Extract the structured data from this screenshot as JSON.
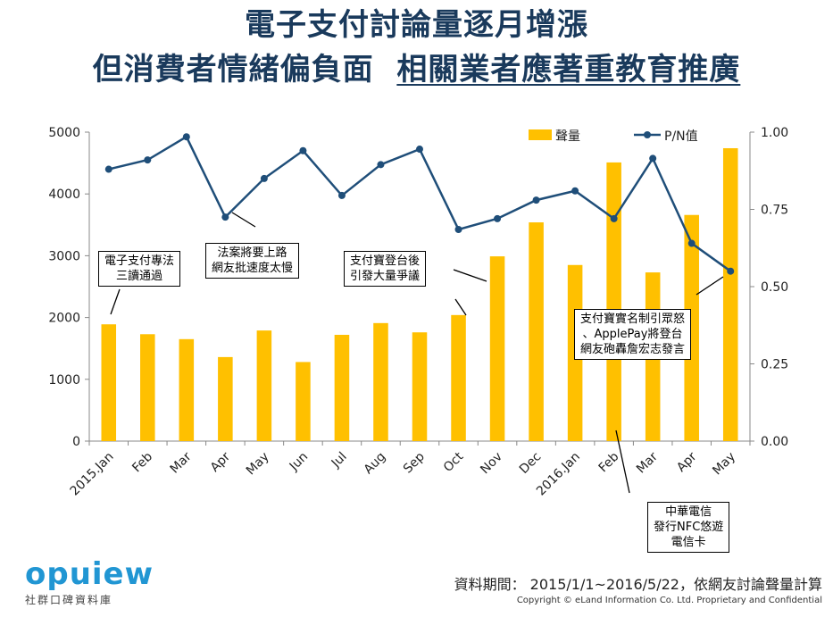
{
  "header": {
    "line1": "電子支付討論量逐月增漲",
    "line2a": "但消費者情緒偏負面",
    "line2b": "相關業者應著重教育推廣"
  },
  "chart_data": {
    "type": "bar",
    "categories": [
      "2015.Jan",
      "Feb",
      "Mar",
      "Apr",
      "May",
      "Jun",
      "Jul",
      "Aug",
      "Sep",
      "Oct",
      "Nov",
      "Dec",
      "2016.Jan",
      "Feb",
      "Mar",
      "Apr",
      "May"
    ],
    "series": [
      {
        "name": "聲量",
        "type": "bar",
        "axis": "left",
        "color": "#ffc000",
        "values": [
          1890,
          1730,
          1650,
          1360,
          1790,
          1280,
          1720,
          1910,
          1760,
          2040,
          2990,
          3540,
          2850,
          4510,
          2730,
          3660,
          4740
        ]
      },
      {
        "name": "P/N值",
        "type": "line",
        "axis": "right",
        "color": "#1f4e79",
        "values": [
          0.88,
          0.91,
          0.985,
          0.725,
          0.85,
          0.94,
          0.795,
          0.895,
          0.945,
          0.685,
          0.72,
          0.78,
          0.81,
          0.72,
          0.915,
          0.64,
          0.55
        ]
      }
    ],
    "ylim_left": [
      0,
      5000
    ],
    "yticks_left": [
      "0",
      "1000",
      "2000",
      "3000",
      "4000",
      "5000"
    ],
    "ylim_right": [
      0,
      1.0
    ],
    "yticks_right": [
      "0.00",
      "0.25",
      "0.50",
      "0.75",
      "1.00"
    ],
    "legend_position": "top-right",
    "grid": false
  },
  "annotations": [
    {
      "lines": [
        "電子支付專法",
        "三讀通過"
      ]
    },
    {
      "lines": [
        "法案將要上路",
        "網友批速度太慢"
      ]
    },
    {
      "lines": [
        "支付寶登台後",
        "引發大量爭議"
      ]
    },
    {
      "lines": [
        "支付寶實名制引眾怒",
        "、ApplePay將登台",
        "網友砲轟詹宏志發言"
      ]
    },
    {
      "lines": [
        "中華電信",
        "發行NFC悠遊",
        "電信卡"
      ]
    }
  ],
  "footer": {
    "logo_word": "opuiew",
    "logo_sub": "社群口碑資料庫",
    "period": "資料期間： 2015/1/1~2016/5/22，依網友討論聲量計算",
    "copyright": "Copyright © eLand Information Co. Ltd. Proprietary and Confidential"
  }
}
